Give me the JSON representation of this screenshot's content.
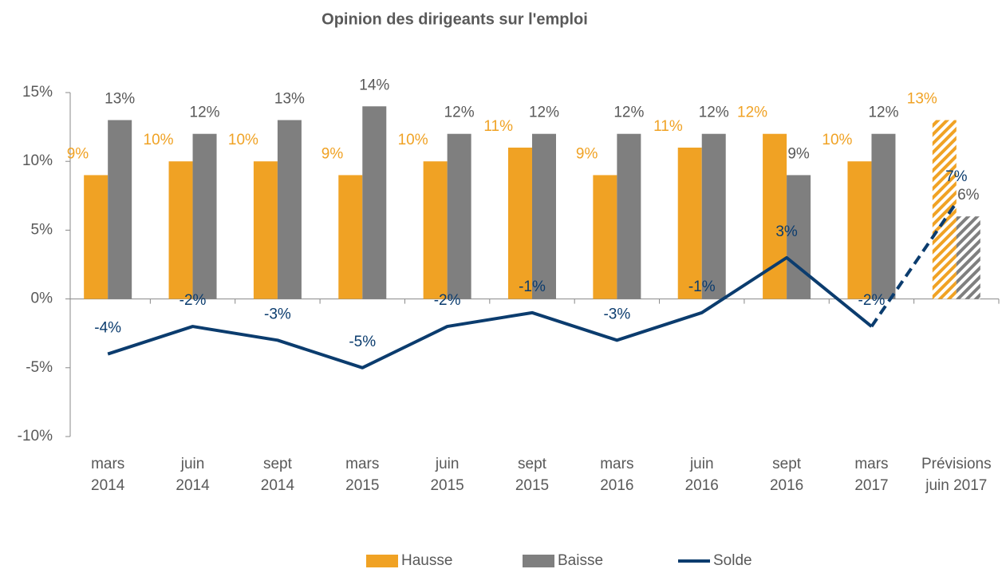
{
  "chart_data": {
    "type": "bar-line",
    "title": "Opinion des dirigeants sur l'emploi",
    "categories": [
      [
        "mars",
        "2014"
      ],
      [
        "juin",
        "2014"
      ],
      [
        "sept",
        "2014"
      ],
      [
        "mars",
        "2015"
      ],
      [
        "juin",
        "2015"
      ],
      [
        "sept",
        "2015"
      ],
      [
        "mars",
        "2016"
      ],
      [
        "juin",
        "2016"
      ],
      [
        "sept",
        "2016"
      ],
      [
        "mars",
        "2017"
      ],
      [
        "Prévisions",
        "juin 2017"
      ]
    ],
    "forecast_categories": [
      10
    ],
    "series": [
      {
        "name": "Hausse",
        "type": "bar",
        "color": "#f0a224",
        "values": [
          9,
          10,
          10,
          9,
          10,
          11,
          9,
          11,
          12,
          10,
          13
        ],
        "value_labels": [
          "9%",
          "10%",
          "10%",
          "9%",
          "10%",
          "11%",
          "9%",
          "11%",
          "12%",
          "10%",
          "13%"
        ]
      },
      {
        "name": "Baisse",
        "type": "bar",
        "color": "#7f7f7f",
        "values": [
          13,
          12,
          13,
          14,
          12,
          12,
          12,
          12,
          9,
          12,
          6
        ],
        "value_labels": [
          "13%",
          "12%",
          "13%",
          "14%",
          "12%",
          "12%",
          "12%",
          "12%",
          "9%",
          "12%",
          "6%"
        ]
      },
      {
        "name": "Solde",
        "type": "line",
        "color": "#0b3c6e",
        "values": [
          -4,
          -2,
          -3,
          -5,
          -2,
          -1,
          -3,
          -1,
          3,
          -2,
          7
        ],
        "value_labels": [
          "-4%",
          "-2%",
          "-3%",
          "-5%",
          "-2%",
          "-1%",
          "-3%",
          "-1%",
          "3%",
          "-2%",
          "7%"
        ]
      }
    ],
    "ylim": [
      -10,
      15
    ],
    "yticks": [
      {
        "value": -10,
        "label": "-10%"
      },
      {
        "value": -5,
        "label": "-5%"
      },
      {
        "value": 0,
        "label": "0%"
      },
      {
        "value": 5,
        "label": "5%"
      },
      {
        "value": 10,
        "label": "10%"
      },
      {
        "value": 15,
        "label": "15%"
      }
    ],
    "legend": "bottom"
  }
}
